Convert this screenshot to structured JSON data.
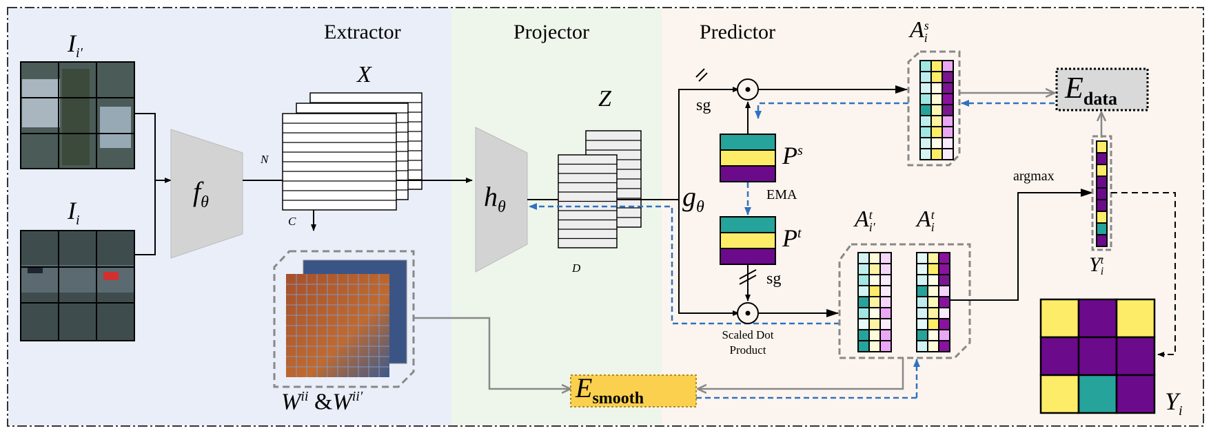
{
  "sections": {
    "extractor": "Extractor",
    "projector": "Projector",
    "predictor": "Predictor"
  },
  "colors": {
    "extractor_bg": "#e9eef8",
    "projector_bg": "#eef5ea",
    "predictor_bg": "#fcf4ee",
    "teal": "#26a39a",
    "yellow": "#fdec67",
    "purple": "#6c0a8c",
    "gradient_arrow": "#2f72c0",
    "loss_smooth_bg": "#fbd04f",
    "loss_data_bg": "#d9d9d9"
  },
  "inputs": {
    "image_prime": {
      "symbol": "I",
      "sub": "i′"
    },
    "image": {
      "symbol": "I",
      "sub": "i"
    }
  },
  "extractor": {
    "network": {
      "symbol": "f",
      "sub": "θ"
    },
    "features": "X",
    "dim_n": "N",
    "dim_c": "C",
    "affinity": {
      "symbol1": "W",
      "sup1": "ii",
      "amp": "&",
      "symbol2": "W",
      "sup2": "ii′"
    }
  },
  "projector": {
    "network": {
      "symbol": "h",
      "sub": "θ"
    },
    "features": "Z",
    "dim_d": "D"
  },
  "predictor": {
    "network": {
      "symbol": "g",
      "sub": "θ"
    },
    "sg_top": "sg",
    "sg_bottom": "sg",
    "ema": "EMA",
    "proto_student": {
      "symbol": "P",
      "sup": "s"
    },
    "proto_teacher": {
      "symbol": "P",
      "sup": "t"
    },
    "scaled_dot_line1": "Scaled Dot",
    "scaled_dot_line2": "Product",
    "assign_student": {
      "symbol": "A",
      "sup": "s",
      "sub": "i"
    },
    "assign_teacher_prime": {
      "symbol": "A",
      "sup": "t",
      "sub": "i′"
    },
    "assign_teacher": {
      "symbol": "A",
      "sup": "t",
      "sub": "i"
    },
    "argmax": "argmax",
    "label_vec": {
      "symbol": "Y",
      "sup": "t",
      "sub": "i"
    },
    "label_map": {
      "symbol": "Y",
      "sub": "i"
    },
    "label_map_grid": [
      "yellow",
      "purple",
      "yellow",
      "purple",
      "purple",
      "purple",
      "yellow",
      "teal",
      "purple"
    ],
    "label_vec_cells": [
      "yellow",
      "purple",
      "yellow",
      "purple",
      "purple",
      "purple",
      "yellow",
      "teal",
      "purple"
    ]
  },
  "losses": {
    "data": {
      "symbol": "E",
      "sub": "data"
    },
    "smooth": {
      "symbol": "E",
      "sub": "smooth"
    }
  }
}
